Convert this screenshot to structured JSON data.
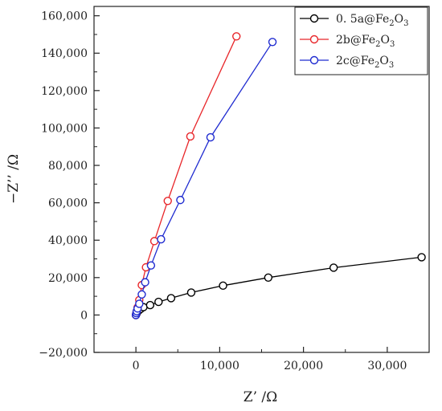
{
  "chart_data": {
    "type": "line",
    "xlabel": "Z’ /Ω",
    "ylabel": "−Z’’ /Ω",
    "xlim": [
      -5000,
      35000
    ],
    "ylim": [
      -20000,
      165000
    ],
    "x_ticks": [
      0,
      10000,
      20000,
      30000
    ],
    "x_tick_labels": [
      "0",
      "10,000",
      "20,000",
      "30,000"
    ],
    "y_ticks": [
      -20000,
      0,
      20000,
      40000,
      60000,
      80000,
      100000,
      120000,
      140000,
      160000
    ],
    "y_tick_labels": [
      "−20,000",
      "0",
      "20,000",
      "40,000",
      "60,000",
      "80,000",
      "100,000",
      "120,000",
      "140,000",
      "160,000"
    ],
    "grid": false,
    "legend_position": "top-right",
    "series": [
      {
        "name": "0. 5a@Fe2O3",
        "legend_main": "0. 5a@Fe",
        "legend_mid": "O",
        "color": "#000000",
        "x": [
          0,
          50,
          100,
          200,
          350,
          550,
          900,
          1700,
          2700,
          4200,
          6600,
          10400,
          15800,
          23600,
          34100
        ],
        "y": [
          0,
          500,
          1000,
          1800,
          2500,
          3200,
          4200,
          5300,
          7000,
          9000,
          12000,
          15700,
          20000,
          25300,
          30900
        ]
      },
      {
        "name": "2b@Fe2O3",
        "legend_main": "2b@Fe",
        "legend_mid": "O",
        "color": "#e8262a",
        "x": [
          0,
          50,
          100,
          200,
          400,
          700,
          1200,
          2200,
          3800,
          6500,
          12000
        ],
        "y": [
          0,
          1000,
          2000,
          4000,
          8000,
          16000,
          25500,
          39500,
          61000,
          95500,
          149000
        ]
      },
      {
        "name": "2c@Fe2O3",
        "legend_main": "2c@Fe",
        "legend_mid": "O",
        "color": "#1f2bd0",
        "x": [
          0,
          50,
          100,
          200,
          400,
          700,
          1100,
          1800,
          3000,
          5300,
          8900,
          16300
        ],
        "y": [
          0,
          1000,
          2000,
          3500,
          6000,
          11000,
          17500,
          26500,
          40500,
          61500,
          95000,
          146000
        ]
      }
    ]
  }
}
